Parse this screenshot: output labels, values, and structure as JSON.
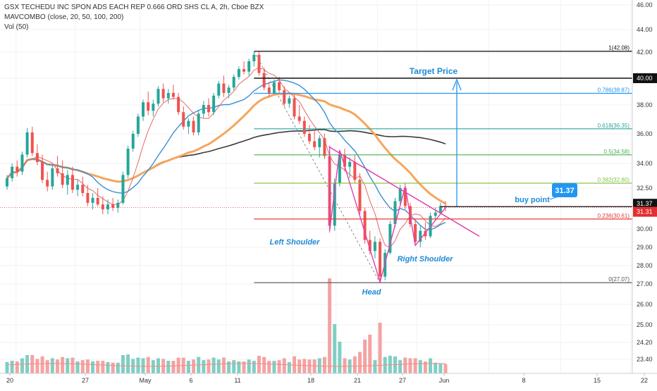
{
  "legend": {
    "title_line": "GSX TECHEDU INC SPON ADS EACH REP 0.666 ORD SHS CL A, 2h, Cboe BZX",
    "ma_line": "MAVCOMBO (close, 20, 50, 100, 200)",
    "vol_line": "Vol (50)"
  },
  "chart_data": {
    "type": "candlestick",
    "symbol": "GSX TECHEDU INC SPON ADS EACH REP 0.666 ORD SHS CL A",
    "interval": "2h",
    "exchange": "Cboe BZX",
    "ylim": [
      22.8,
      46.0
    ],
    "y_ticks": [
      23.4,
      24.2,
      25.0,
      26.0,
      27.0,
      28.0,
      29.0,
      30.0,
      32.5,
      34.0,
      36.0,
      38.0,
      40.0,
      42.0,
      44.0,
      46.0
    ],
    "y_tick_labels": [
      "23.40",
      "24.20",
      "25.00",
      "26.00",
      "27.00",
      "28.00",
      "29.00",
      "30.00",
      "32.50",
      "34.00",
      "36.00",
      "38.00",
      "40.00",
      "42.00",
      "44.00",
      "46.00"
    ],
    "x_ticks": [
      {
        "label": "20",
        "bar": 5
      },
      {
        "label": "27",
        "bar": 38
      },
      {
        "label": "May",
        "bar": 74
      },
      {
        "label": "6",
        "bar": 97
      },
      {
        "label": "11",
        "bar": 122
      },
      {
        "label": "18",
        "bar": 159
      },
      {
        "label": "21",
        "bar": 183
      },
      {
        "label": "27",
        "bar": 206
      },
      {
        "label": "Jun",
        "bar": 228
      },
      {
        "label": "8",
        "bar": 268
      },
      {
        "label": "15",
        "bar": 308
      },
      {
        "label": "22",
        "bar": 347
      }
    ],
    "bars_total": 350,
    "price_badges": [
      {
        "value": "40.00",
        "bg": "#111111",
        "fg": "#ffffff"
      },
      {
        "value": "31.37",
        "bg": "#111111",
        "fg": "#ffffff"
      },
      {
        "value": "31.31",
        "bg": "#e03030",
        "fg": "#ffffff"
      }
    ],
    "ohlc": [
      [
        32.6,
        33.3,
        32.4,
        33.1
      ],
      [
        33.1,
        34.0,
        32.9,
        33.8
      ],
      [
        33.8,
        34.2,
        33.2,
        33.5
      ],
      [
        33.5,
        34.8,
        33.3,
        34.6
      ],
      [
        34.6,
        36.4,
        34.4,
        36.1
      ],
      [
        36.1,
        36.5,
        34.5,
        34.7
      ],
      [
        34.7,
        35.3,
        33.9,
        34.1
      ],
      [
        34.1,
        34.6,
        32.8,
        33.0
      ],
      [
        33.0,
        33.5,
        32.3,
        32.6
      ],
      [
        32.6,
        33.9,
        32.4,
        33.7
      ],
      [
        33.7,
        34.5,
        33.2,
        33.4
      ],
      [
        33.4,
        34.2,
        32.5,
        32.7
      ],
      [
        32.7,
        33.6,
        32.1,
        33.3
      ],
      [
        33.3,
        33.8,
        32.2,
        32.4
      ],
      [
        32.4,
        33.0,
        32.0,
        32.7
      ],
      [
        32.7,
        33.2,
        32.0,
        32.2
      ],
      [
        32.2,
        32.7,
        31.4,
        31.6
      ],
      [
        31.6,
        32.2,
        31.2,
        31.9
      ],
      [
        31.9,
        32.5,
        31.4,
        31.5
      ],
      [
        31.5,
        32.0,
        30.9,
        31.2
      ],
      [
        31.2,
        31.8,
        30.9,
        31.5
      ],
      [
        31.5,
        31.9,
        31.1,
        31.3
      ],
      [
        31.3,
        31.8,
        31.0,
        31.6
      ],
      [
        31.6,
        33.5,
        31.5,
        33.3
      ],
      [
        33.3,
        35.2,
        33.1,
        35.0
      ],
      [
        35.0,
        36.2,
        34.8,
        36.0
      ],
      [
        36.0,
        37.4,
        35.8,
        37.2
      ],
      [
        37.2,
        38.4,
        36.9,
        38.2
      ],
      [
        38.2,
        39.0,
        37.3,
        37.6
      ],
      [
        37.6,
        38.4,
        37.2,
        38.1
      ],
      [
        38.1,
        39.4,
        37.9,
        39.2
      ],
      [
        39.2,
        39.6,
        38.2,
        38.5
      ],
      [
        38.5,
        39.2,
        38.1,
        38.9
      ],
      [
        38.9,
        39.5,
        38.4,
        38.6
      ],
      [
        38.6,
        38.9,
        37.3,
        37.5
      ],
      [
        37.5,
        37.9,
        36.3,
        36.5
      ],
      [
        36.5,
        37.1,
        36.0,
        36.9
      ],
      [
        36.9,
        37.2,
        35.9,
        36.1
      ],
      [
        36.1,
        37.6,
        35.9,
        37.4
      ],
      [
        37.4,
        38.3,
        37.1,
        38.0
      ],
      [
        38.0,
        38.5,
        37.2,
        37.5
      ],
      [
        37.5,
        38.9,
        37.3,
        38.7
      ],
      [
        38.7,
        39.8,
        38.5,
        39.6
      ],
      [
        39.6,
        40.2,
        38.6,
        38.9
      ],
      [
        38.9,
        39.5,
        38.5,
        39.3
      ],
      [
        39.3,
        40.3,
        39.1,
        40.1
      ],
      [
        40.1,
        40.9,
        39.9,
        40.7
      ],
      [
        40.7,
        41.3,
        40.3,
        40.5
      ],
      [
        40.5,
        41.5,
        40.2,
        41.3
      ],
      [
        41.3,
        42.0,
        40.9,
        41.8
      ],
      [
        41.8,
        42.08,
        40.2,
        40.4
      ],
      [
        40.4,
        40.8,
        39.1,
        39.3
      ],
      [
        39.3,
        39.7,
        38.6,
        38.9
      ],
      [
        38.9,
        39.9,
        38.8,
        39.7
      ],
      [
        39.7,
        40.1,
        38.9,
        39.1
      ],
      [
        39.1,
        39.4,
        37.9,
        38.1
      ],
      [
        38.1,
        38.7,
        37.8,
        38.5
      ],
      [
        38.5,
        38.8,
        37.0,
        37.2
      ],
      [
        37.2,
        38.0,
        36.7,
        36.9
      ],
      [
        36.9,
        37.2,
        35.8,
        36.0
      ],
      [
        36.0,
        36.6,
        35.3,
        35.5
      ],
      [
        35.5,
        36.2,
        34.9,
        35.1
      ],
      [
        35.1,
        35.9,
        34.4,
        35.7
      ],
      [
        35.7,
        36.0,
        34.3,
        34.5
      ],
      [
        34.5,
        34.9,
        29.8,
        30.2
      ],
      [
        30.2,
        33.1,
        29.9,
        32.8
      ],
      [
        32.8,
        34.9,
        32.6,
        34.6
      ],
      [
        34.6,
        35.0,
        33.5,
        33.8
      ],
      [
        33.8,
        34.4,
        33.1,
        34.1
      ],
      [
        34.1,
        34.6,
        32.8,
        33.0
      ],
      [
        33.0,
        33.4,
        30.9,
        31.1
      ],
      [
        31.1,
        31.3,
        29.2,
        29.4
      ],
      [
        29.4,
        29.9,
        28.6,
        28.8
      ],
      [
        28.8,
        29.6,
        28.4,
        29.3
      ],
      [
        29.3,
        29.5,
        27.1,
        27.4
      ],
      [
        27.4,
        28.9,
        27.2,
        28.7
      ],
      [
        28.7,
        30.5,
        28.6,
        30.3
      ],
      [
        30.3,
        31.9,
        30.1,
        31.7
      ],
      [
        31.7,
        32.7,
        31.5,
        32.5
      ],
      [
        32.5,
        32.8,
        31.2,
        31.4
      ],
      [
        31.4,
        31.6,
        30.1,
        30.3
      ],
      [
        30.3,
        30.6,
        29.1,
        29.3
      ],
      [
        29.3,
        30.2,
        29.0,
        29.9
      ],
      [
        29.9,
        30.4,
        29.4,
        29.6
      ],
      [
        29.6,
        31.0,
        29.5,
        30.8
      ],
      [
        30.8,
        31.3,
        30.5,
        31.0
      ],
      [
        31.0,
        31.6,
        30.9,
        31.4
      ],
      [
        31.4,
        31.7,
        31.1,
        31.37
      ]
    ],
    "volume_note": "Volume histogram at bottom, spike near the head"
  },
  "annotations": {
    "fib": [
      {
        "label": "1(42.08)",
        "color": "#111111"
      },
      {
        "label": "0.786(38.87)",
        "color": "#2196f3"
      },
      {
        "label": "0.618(36.35)",
        "color": "#26a69a"
      },
      {
        "label": "0.5(34.58)",
        "color": "#4caf50"
      },
      {
        "label": "0.382(32.80)",
        "color": "#8bc34a"
      },
      {
        "label": "0.236(30.61)",
        "color": "#e53935"
      },
      {
        "label": "0(27.07)",
        "color": "#555555"
      }
    ],
    "target_price": "Target Price",
    "buy_point": "buy point",
    "buy_badge": "31.37",
    "left_shoulder": "Left Shoulder",
    "head": "Head",
    "right_shoulder": "Right Shoulder"
  }
}
